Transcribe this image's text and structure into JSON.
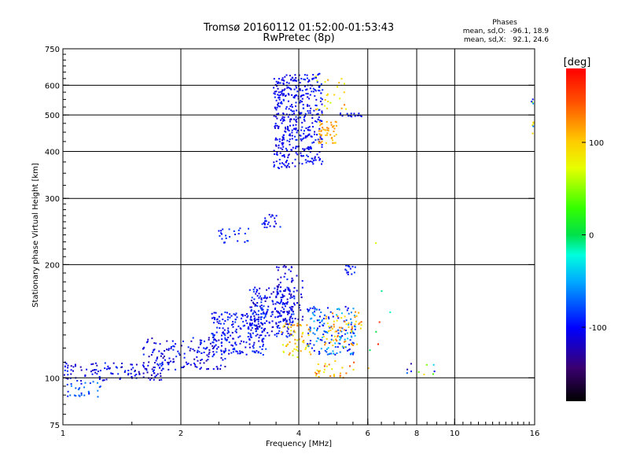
{
  "chart_data": {
    "type": "scatter",
    "title": "Tromsø 20160112 01:52:00-01:53:43",
    "subtitle": "RwPretec (8p)",
    "xlabel": "Frequency [MHz]",
    "ylabel": "Stationary phase Virtual Height [km]",
    "x_scale": "log",
    "y_scale": "log",
    "xlim": [
      1,
      16
    ],
    "ylim": [
      75,
      750
    ],
    "x_ticks": [
      1,
      2,
      4,
      6,
      8,
      10,
      16
    ],
    "y_ticks": [
      75,
      100,
      200,
      300,
      400,
      500,
      600,
      750
    ],
    "x_gridlines": [
      2,
      4,
      6,
      8,
      10
    ],
    "y_gridlines": [
      100,
      200,
      300,
      400,
      500,
      600
    ],
    "grid": true,
    "stats": {
      "heading": "Phases",
      "line1": "mean, sd,O:  -96.1, 18.9",
      "line2": "mean, sd,X:   92.1, 24.6"
    },
    "colorbar": {
      "label": "[deg]",
      "range": [
        -180,
        180
      ],
      "ticks": [
        100,
        0,
        -100
      ],
      "tick_labels": [
        "100",
        "0",
        "-100"
      ]
    },
    "clusters": [
      {
        "x": [
          1.0,
          1.25
        ],
        "y": [
          89,
          99
        ],
        "phase": [
          -100,
          -60
        ],
        "n": 30
      },
      {
        "x": [
          1.0,
          1.8
        ],
        "y": [
          98,
          110
        ],
        "phase": [
          -130,
          -85
        ],
        "n": 120
      },
      {
        "x": [
          1.6,
          2.6
        ],
        "y": [
          105,
          128
        ],
        "phase": [
          -130,
          -85
        ],
        "n": 150
      },
      {
        "x": [
          2.4,
          3.3
        ],
        "y": [
          115,
          150
        ],
        "phase": [
          -120,
          -80
        ],
        "n": 200
      },
      {
        "x": [
          3.0,
          3.9
        ],
        "y": [
          128,
          175
        ],
        "phase": [
          -125,
          -80
        ],
        "n": 220
      },
      {
        "x": [
          3.5,
          4.1
        ],
        "y": [
          140,
          200
        ],
        "phase": [
          -125,
          -90
        ],
        "n": 80
      },
      {
        "x": [
          3.6,
          4.3
        ],
        "y": [
          112,
          140
        ],
        "phase": [
          60,
          130
        ],
        "n": 60
      },
      {
        "x": [
          4.2,
          5.6
        ],
        "y": [
          115,
          155
        ],
        "phase": [
          -110,
          -40
        ],
        "n": 160
      },
      {
        "x": [
          4.6,
          5.8
        ],
        "y": [
          120,
          150
        ],
        "phase": [
          80,
          140
        ],
        "n": 60
      },
      {
        "x": [
          4.4,
          5.6
        ],
        "y": [
          100,
          112
        ],
        "phase": [
          70,
          160
        ],
        "n": 30
      },
      {
        "x": [
          5.2,
          5.6
        ],
        "y": [
          188,
          200
        ],
        "phase": [
          -110,
          -80
        ],
        "n": 15
      },
      {
        "x": [
          2.5,
          3.0
        ],
        "y": [
          228,
          250
        ],
        "phase": [
          -110,
          -80
        ],
        "n": 25
      },
      {
        "x": [
          3.2,
          3.6
        ],
        "y": [
          250,
          272
        ],
        "phase": [
          -115,
          -80
        ],
        "n": 25
      },
      {
        "x": [
          3.45,
          3.95
        ],
        "y": [
          360,
          640
        ],
        "phase": [
          -120,
          -90
        ],
        "n": 220
      },
      {
        "x": [
          3.9,
          4.6
        ],
        "y": [
          370,
          645
        ],
        "phase": [
          -115,
          -85
        ],
        "n": 220
      },
      {
        "x": [
          4.5,
          5.0
        ],
        "y": [
          420,
          480
        ],
        "phase": [
          95,
          130
        ],
        "n": 50
      },
      {
        "x": [
          4.4,
          5.3
        ],
        "y": [
          500,
          640
        ],
        "phase": [
          60,
          130
        ],
        "n": 25
      },
      {
        "x": [
          5.1,
          5.8
        ],
        "y": [
          495,
          505
        ],
        "phase": [
          -110,
          -90
        ],
        "n": 15
      },
      {
        "x": [
          6.0,
          6.9
        ],
        "y": [
          95,
          240
        ],
        "phase": [
          -40,
          170
        ],
        "n": 8
      },
      {
        "x": [
          7.5,
          9.0
        ],
        "y": [
          102,
          110
        ],
        "phase": [
          -140,
          100
        ],
        "n": 10
      },
      {
        "x": [
          15.7,
          16.0
        ],
        "y": [
          440,
          580
        ],
        "phase": [
          -100,
          120
        ],
        "n": 10
      }
    ],
    "notes": "Scatter of ~1700 stationary-phase echoes; each point colored by phase in degrees via the colorbar."
  }
}
